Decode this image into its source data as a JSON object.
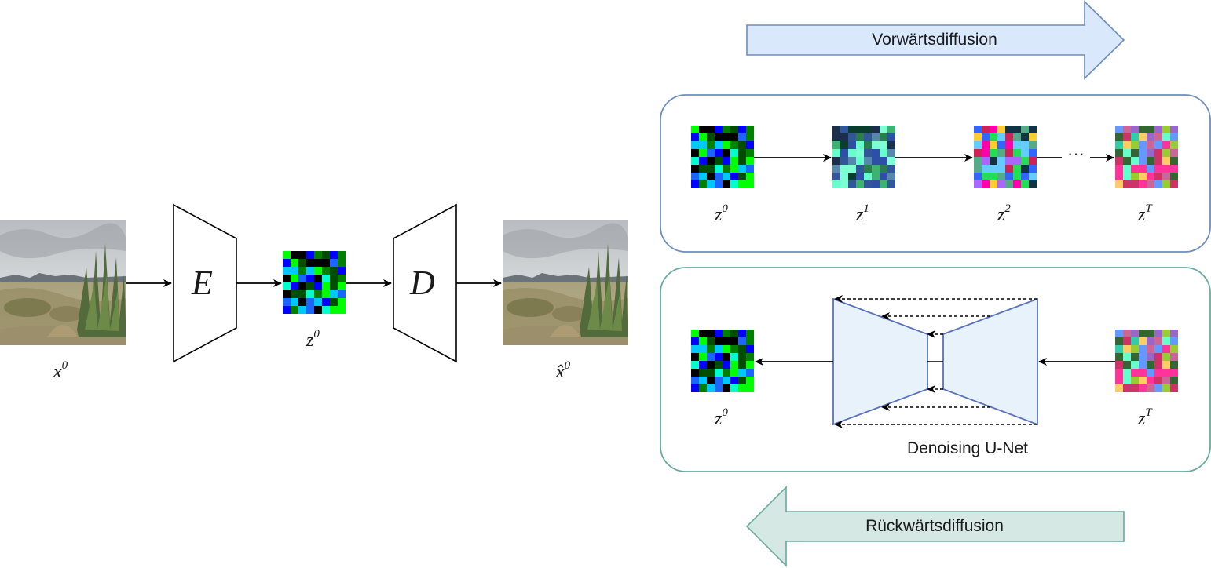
{
  "forward": {
    "label": "Vorwärtsdiffusion",
    "latents": [
      {
        "base": "z",
        "sup": "0"
      },
      {
        "base": "z",
        "sup": "1"
      },
      {
        "base": "z",
        "sup": "2"
      },
      {
        "base": "z",
        "sup": "T"
      }
    ],
    "ellipsis": "···"
  },
  "reverse": {
    "label": "Rückwärtsdiffusion",
    "unet_label": "Denoising U-Net",
    "input": {
      "base": "z",
      "sup": "T"
    },
    "output": {
      "base": "z",
      "sup": "0"
    }
  },
  "autoencoder": {
    "encoder": "E",
    "decoder": "D",
    "input_label": {
      "base": "x",
      "sup": "0"
    },
    "latent_label": {
      "base": "z",
      "sup": "0"
    },
    "output_label": {
      "base": "x̂",
      "sup": "0"
    }
  },
  "colors": {
    "forward_fill": "#dae8fc",
    "forward_stroke": "#6c8ebf",
    "reverse_fill": "#d5e8e4",
    "reverse_stroke": "#67ab9f",
    "unet_fill": "#e8f2fb",
    "unet_stroke": "#5a73b8"
  }
}
